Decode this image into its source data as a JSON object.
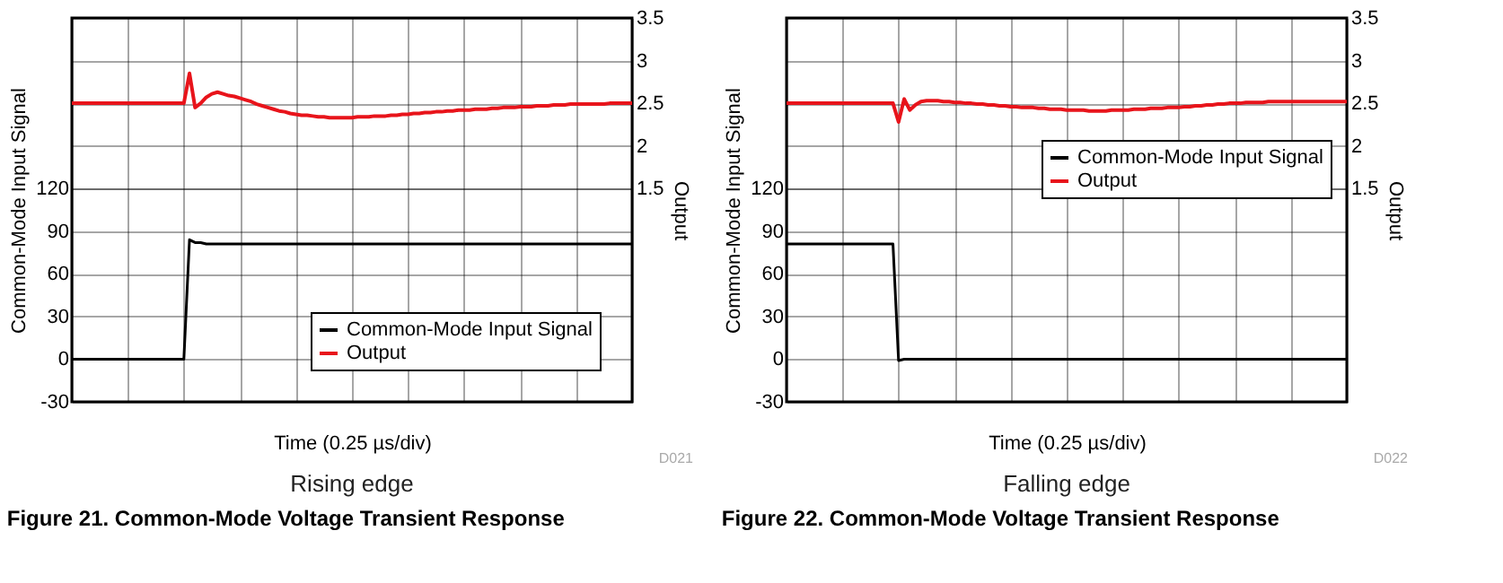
{
  "chart_data": [
    {
      "type": "line",
      "title": "Figure 21. Common-Mode Voltage Transient Response",
      "subtitle": "Rising edge",
      "xlabel": "Time (0.25 µs/div)",
      "ylabel": "Common-Mode Input Signal",
      "y2label": "Output",
      "annotations": [
        "D021"
      ],
      "categories": [
        null,
        null,
        null,
        null,
        null,
        null,
        null,
        null,
        null,
        null,
        null,
        null,
        null,
        null,
        null,
        null,
        null,
        null,
        null,
        null,
        null,
        null,
        null,
        null,
        null,
        null,
        null,
        null,
        null,
        null,
        null,
        null,
        null,
        null,
        null,
        null,
        null,
        null,
        null,
        null,
        null,
        null,
        null,
        null,
        null,
        null,
        null,
        null,
        null,
        null,
        null,
        null,
        null,
        null,
        null,
        null,
        null,
        null,
        null,
        null,
        null,
        null,
        null,
        null,
        null,
        null,
        null,
        null,
        null,
        null,
        null,
        null,
        null,
        null,
        null,
        null,
        null,
        null,
        null,
        null,
        null,
        null,
        null,
        null,
        null,
        null,
        null,
        null,
        null,
        null,
        null,
        null,
        null,
        null,
        null,
        null,
        null,
        null,
        null,
        null,
        null
      ],
      "ylim": [
        -30,
        240
      ],
      "yticks": [
        -30,
        0,
        30,
        60,
        90,
        120
      ],
      "y2lim": [
        -1,
        3.5
      ],
      "y2ticks": [
        1.5,
        2,
        2.5,
        3,
        3.5
      ],
      "grid": true,
      "legend": "bottom right",
      "series": [
        {
          "name": "Common-Mode Input Signal",
          "color": "#000000",
          "values": [
            0,
            0,
            0,
            0,
            0,
            0,
            0,
            0,
            0,
            0,
            0,
            0,
            0,
            0,
            0,
            0,
            0,
            0,
            0,
            0,
            0,
            84,
            82,
            82,
            81,
            81,
            81,
            81,
            81,
            81,
            81,
            81,
            81,
            81,
            81,
            81,
            81,
            81,
            81,
            81,
            81,
            81,
            81,
            81,
            81,
            81,
            81,
            81,
            81,
            81,
            81,
            81,
            81,
            81,
            81,
            81,
            81,
            81,
            81,
            81,
            81,
            81,
            81,
            81,
            81,
            81,
            81,
            81,
            81,
            81,
            81,
            81,
            81,
            81,
            81,
            81,
            81,
            81,
            81,
            81,
            81,
            81,
            81,
            81,
            81,
            81,
            81,
            81,
            81,
            81,
            81,
            81,
            81,
            81,
            81,
            81,
            81,
            81,
            81,
            81,
            81
          ]
        },
        {
          "name": "Output",
          "color": "#e8141b",
          "axis": "y2",
          "values": [
            2.5,
            2.5,
            2.5,
            2.5,
            2.5,
            2.5,
            2.5,
            2.5,
            2.5,
            2.5,
            2.5,
            2.5,
            2.5,
            2.5,
            2.5,
            2.5,
            2.5,
            2.5,
            2.5,
            2.5,
            2.5,
            2.85,
            2.45,
            2.5,
            2.57,
            2.61,
            2.63,
            2.61,
            2.59,
            2.58,
            2.56,
            2.54,
            2.52,
            2.49,
            2.47,
            2.45,
            2.43,
            2.41,
            2.4,
            2.38,
            2.37,
            2.36,
            2.36,
            2.35,
            2.34,
            2.34,
            2.33,
            2.33,
            2.33,
            2.33,
            2.33,
            2.34,
            2.34,
            2.34,
            2.35,
            2.35,
            2.35,
            2.36,
            2.36,
            2.37,
            2.37,
            2.38,
            2.38,
            2.39,
            2.39,
            2.4,
            2.4,
            2.41,
            2.41,
            2.42,
            2.42,
            2.42,
            2.43,
            2.43,
            2.43,
            2.44,
            2.44,
            2.45,
            2.45,
            2.45,
            2.46,
            2.46,
            2.46,
            2.47,
            2.47,
            2.47,
            2.48,
            2.48,
            2.48,
            2.49,
            2.49,
            2.49,
            2.49,
            2.49,
            2.49,
            2.49,
            2.5,
            2.5,
            2.5,
            2.5,
            2.5
          ]
        }
      ]
    },
    {
      "type": "line",
      "title": "Figure 22. Common-Mode Voltage Transient Response",
      "subtitle": "Falling edge",
      "xlabel": "Time (0.25 µs/div)",
      "ylabel": "Common-Mode Input Signal",
      "y2label": "Output",
      "annotations": [
        "D022"
      ],
      "categories": [
        null,
        null,
        null,
        null,
        null,
        null,
        null,
        null,
        null,
        null,
        null,
        null,
        null,
        null,
        null,
        null,
        null,
        null,
        null,
        null,
        null,
        null,
        null,
        null,
        null,
        null,
        null,
        null,
        null,
        null,
        null,
        null,
        null,
        null,
        null,
        null,
        null,
        null,
        null,
        null,
        null,
        null,
        null,
        null,
        null,
        null,
        null,
        null,
        null,
        null,
        null,
        null,
        null,
        null,
        null,
        null,
        null,
        null,
        null,
        null,
        null,
        null,
        null,
        null,
        null,
        null,
        null,
        null,
        null,
        null,
        null,
        null,
        null,
        null,
        null,
        null,
        null,
        null,
        null,
        null,
        null,
        null,
        null,
        null,
        null,
        null,
        null,
        null,
        null,
        null,
        null,
        null,
        null,
        null,
        null,
        null,
        null,
        null,
        null,
        null,
        null
      ],
      "ylim": [
        -30,
        240
      ],
      "yticks": [
        -30,
        0,
        30,
        60,
        90,
        120
      ],
      "y2lim": [
        -1,
        3.5
      ],
      "y2ticks": [
        1.5,
        2,
        2.5,
        3,
        3.5
      ],
      "grid": true,
      "legend": "top right",
      "series": [
        {
          "name": "Common-Mode Input Signal",
          "color": "#000000",
          "values": [
            81,
            81,
            81,
            81,
            81,
            81,
            81,
            81,
            81,
            81,
            81,
            81,
            81,
            81,
            81,
            81,
            81,
            81,
            81,
            81,
            -1,
            0,
            0,
            0,
            0,
            0,
            0,
            0,
            0,
            0,
            0,
            0,
            0,
            0,
            0,
            0,
            0,
            0,
            0,
            0,
            0,
            0,
            0,
            0,
            0,
            0,
            0,
            0,
            0,
            0,
            0,
            0,
            0,
            0,
            0,
            0,
            0,
            0,
            0,
            0,
            0,
            0,
            0,
            0,
            0,
            0,
            0,
            0,
            0,
            0,
            0,
            0,
            0,
            0,
            0,
            0,
            0,
            0,
            0,
            0,
            0,
            0,
            0,
            0,
            0,
            0,
            0,
            0,
            0,
            0,
            0,
            0,
            0,
            0,
            0,
            0,
            0,
            0,
            0,
            0,
            0
          ]
        },
        {
          "name": "Output",
          "color": "#e8141b",
          "axis": "y2",
          "values": [
            2.5,
            2.5,
            2.5,
            2.5,
            2.5,
            2.5,
            2.5,
            2.5,
            2.5,
            2.5,
            2.5,
            2.5,
            2.5,
            2.5,
            2.5,
            2.5,
            2.5,
            2.5,
            2.5,
            2.5,
            2.28,
            2.55,
            2.42,
            2.48,
            2.52,
            2.53,
            2.53,
            2.53,
            2.52,
            2.52,
            2.51,
            2.51,
            2.5,
            2.5,
            2.49,
            2.49,
            2.48,
            2.48,
            2.47,
            2.47,
            2.46,
            2.46,
            2.45,
            2.45,
            2.45,
            2.44,
            2.44,
            2.43,
            2.43,
            2.43,
            2.42,
            2.42,
            2.42,
            2.42,
            2.41,
            2.41,
            2.41,
            2.41,
            2.42,
            2.42,
            2.42,
            2.42,
            2.43,
            2.43,
            2.43,
            2.44,
            2.44,
            2.44,
            2.45,
            2.45,
            2.45,
            2.46,
            2.46,
            2.47,
            2.47,
            2.48,
            2.48,
            2.49,
            2.49,
            2.5,
            2.5,
            2.5,
            2.51,
            2.51,
            2.51,
            2.51,
            2.52,
            2.52,
            2.52,
            2.52,
            2.52,
            2.52,
            2.52,
            2.52,
            2.52,
            2.52,
            2.52,
            2.52,
            2.52,
            2.52,
            2.52
          ]
        }
      ]
    }
  ]
}
